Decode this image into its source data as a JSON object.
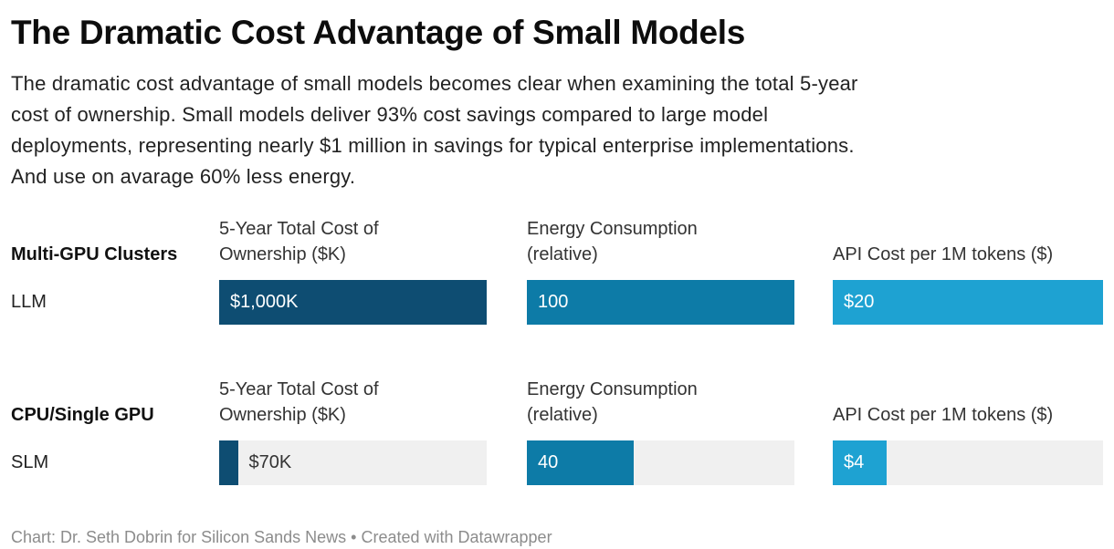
{
  "header": {
    "title": "The Dramatic Cost Advantage of Small Models",
    "description_lines": [
      "The dramatic cost advantage of small models becomes clear when examining the total 5-year",
      "cost of ownership. Small models deliver 93% cost savings compared to large model",
      "deployments, representing nearly $1 million in savings for typical enterprise implementations.",
      "And use on avarage 60% less energy."
    ]
  },
  "colors": {
    "dark_blue": "#0e4d72",
    "medium_blue": "#0d7ba7",
    "light_blue": "#1ea2d2",
    "track_gray": "#f0f0f0"
  },
  "chart_data": {
    "type": "bar",
    "orientation": "horizontal",
    "grid": "off",
    "groups": [
      {
        "group_label": "Multi-GPU Clusters",
        "row_label": "LLM",
        "metrics": [
          {
            "header": "5-Year Total Cost of Ownership ($K)",
            "header_lines": [
              "5-Year Total Cost of",
              "Ownership ($K)"
            ],
            "value": 1000,
            "max": 1000,
            "label": "$1,000K",
            "color": "#0e4d72",
            "label_position": "inside"
          },
          {
            "header": "Energy Consumption (relative)",
            "header_lines": [
              "Energy Consumption",
              "(relative)"
            ],
            "value": 100,
            "max": 100,
            "label": "100",
            "color": "#0d7ba7",
            "label_position": "inside"
          },
          {
            "header": "API Cost per 1M tokens ($)",
            "header_lines": [
              "API Cost per 1M tokens ($)"
            ],
            "value": 20,
            "max": 20,
            "label": "$20",
            "color": "#1ea2d2",
            "label_position": "inside"
          }
        ]
      },
      {
        "group_label": "CPU/Single GPU",
        "row_label": "SLM",
        "metrics": [
          {
            "header": "5-Year Total Cost of Ownership ($K)",
            "header_lines": [
              "5-Year Total Cost of",
              "Ownership ($K)"
            ],
            "value": 70,
            "max": 1000,
            "label": "$70K",
            "color": "#0e4d72",
            "label_position": "outside"
          },
          {
            "header": "Energy Consumption (relative)",
            "header_lines": [
              "Energy Consumption",
              "(relative)"
            ],
            "value": 40,
            "max": 100,
            "label": "40",
            "color": "#0d7ba7",
            "label_position": "inside"
          },
          {
            "header": "API Cost per 1M tokens ($)",
            "header_lines": [
              "API Cost per 1M tokens ($)"
            ],
            "value": 4,
            "max": 20,
            "label": "$4",
            "color": "#1ea2d2",
            "label_position": "inside"
          }
        ]
      }
    ]
  },
  "footer": {
    "credit": "Chart: Dr. Seth Dobrin for Silicon Sands News • Created with Datawrapper"
  }
}
